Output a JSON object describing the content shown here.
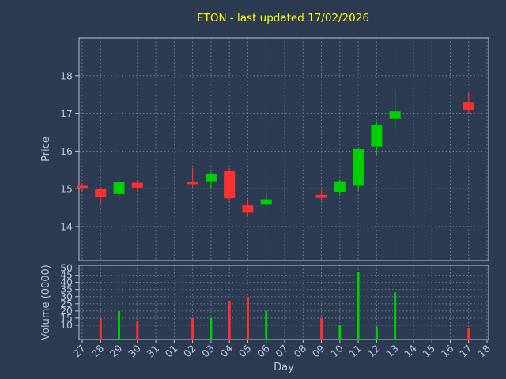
{
  "colors": {
    "background": "#2c3a52",
    "title": "#ffff00",
    "axis": "#b9c7da",
    "grid": "#8097b1",
    "up": "#00d000",
    "down": "#ff3030"
  },
  "chart_data": {
    "type": "candlestick",
    "title": "ETON - last updated 17/02/2026",
    "xlabel": "Day",
    "grid": "dotted",
    "price_axis": {
      "label": "Price",
      "ticks": [
        14,
        15,
        16,
        17,
        18
      ],
      "range": [
        13.1,
        19.0
      ]
    },
    "volume_axis": {
      "label": "Volume (0000)",
      "ticks": [
        10,
        15,
        20,
        25,
        30,
        35,
        40,
        45,
        50
      ],
      "range": [
        0,
        52
      ]
    },
    "x_ticks": [
      "27",
      "28",
      "29",
      "30",
      "31",
      "01",
      "02",
      "03",
      "04",
      "05",
      "06",
      "07",
      "08",
      "09",
      "10",
      "11",
      "12",
      "13",
      "14",
      "15",
      "16",
      "17",
      "18"
    ],
    "candles": [
      {
        "day": "27",
        "open": 15.1,
        "high": 15.15,
        "low": 14.95,
        "close": 15.02,
        "volume": 0
      },
      {
        "day": "28",
        "open": 15.0,
        "high": 15.03,
        "low": 14.6,
        "close": 14.78,
        "volume": 15
      },
      {
        "day": "29",
        "open": 14.86,
        "high": 15.3,
        "low": 14.72,
        "close": 15.18,
        "volume": 20
      },
      {
        "day": "30",
        "open": 15.16,
        "high": 15.22,
        "low": 14.92,
        "close": 15.03,
        "volume": 13
      },
      {
        "day": "02",
        "open": 15.18,
        "high": 15.55,
        "low": 15.05,
        "close": 15.12,
        "volume": 15
      },
      {
        "day": "03",
        "open": 15.2,
        "high": 15.45,
        "low": 14.98,
        "close": 15.4,
        "volume": 15
      },
      {
        "day": "04",
        "open": 15.48,
        "high": 15.55,
        "low": 14.7,
        "close": 14.75,
        "volume": 27
      },
      {
        "day": "05",
        "open": 14.56,
        "high": 14.72,
        "low": 14.28,
        "close": 14.37,
        "volume": 30
      },
      {
        "day": "06",
        "open": 14.6,
        "high": 14.9,
        "low": 14.54,
        "close": 14.72,
        "volume": 20
      },
      {
        "day": "09",
        "open": 14.84,
        "high": 14.97,
        "low": 14.7,
        "close": 14.76,
        "volume": 15
      },
      {
        "day": "10",
        "open": 14.92,
        "high": 15.24,
        "low": 14.86,
        "close": 15.2,
        "volume": 10
      },
      {
        "day": "11",
        "open": 15.1,
        "high": 16.1,
        "low": 14.95,
        "close": 16.05,
        "volume": 47
      },
      {
        "day": "12",
        "open": 16.12,
        "high": 16.78,
        "low": 15.9,
        "close": 16.7,
        "volume": 9
      },
      {
        "day": "13",
        "open": 16.85,
        "high": 17.6,
        "low": 16.6,
        "close": 17.05,
        "volume": 33
      },
      {
        "day": "17",
        "open": 17.3,
        "high": 17.55,
        "low": 16.98,
        "close": 17.1,
        "volume": 8
      }
    ]
  }
}
